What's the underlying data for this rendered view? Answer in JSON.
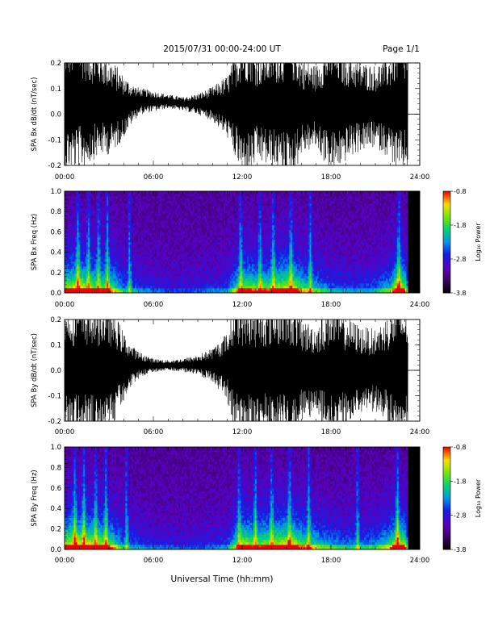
{
  "header": {
    "date_range": "2015/07/31  00:00-24:00 UT",
    "page": "Page 1/1"
  },
  "xlabel": "Universal Time (hh:mm)",
  "chart_data": [
    {
      "type": "line",
      "ylabel": "SPA Bx dB/dt (nT/sec)",
      "ylim": [
        -0.2,
        0.2
      ],
      "yticks": [
        "0.2",
        "0.1",
        "0.0",
        "-0.1",
        "-0.2"
      ],
      "xticks": [
        "00:00",
        "06:00",
        "12:00",
        "18:00",
        "24:00"
      ],
      "xlim_hours": [
        0,
        24
      ],
      "data_end_hour": 23.2,
      "envelope": {
        "hours": [
          0,
          0.5,
          1.0,
          1.5,
          2.0,
          2.5,
          3.0,
          3.5,
          4.0,
          4.5,
          5.0,
          6.0,
          7.0,
          8.0,
          9.0,
          10.0,
          11.0,
          11.5,
          12.0,
          12.5,
          13.0,
          14.0,
          15.0,
          15.5,
          16.0,
          17.0,
          18.0,
          19.0,
          20.0,
          21.0,
          22.0,
          22.5,
          23.2
        ],
        "amplitude": [
          0.2,
          0.2,
          0.2,
          0.18,
          0.16,
          0.15,
          0.14,
          0.12,
          0.09,
          0.06,
          0.04,
          0.03,
          0.02,
          0.02,
          0.03,
          0.05,
          0.09,
          0.15,
          0.2,
          0.2,
          0.16,
          0.18,
          0.2,
          0.2,
          0.14,
          0.12,
          0.2,
          0.16,
          0.13,
          0.12,
          0.15,
          0.2,
          0.18
        ],
        "offset": [
          0.05,
          0.05,
          0.05,
          0.04,
          0.04,
          0.04,
          0.03,
          0.03,
          0.03,
          0.04,
          0.05,
          0.05,
          0.05,
          0.04,
          0.04,
          0.04,
          0.03,
          0.03,
          0.03,
          0.03,
          0.03,
          0.03,
          0.03,
          0.03,
          0.03,
          0.03,
          0.03,
          0.03,
          0.03,
          0.03,
          0.03,
          0.03,
          0.03
        ]
      }
    },
    {
      "type": "heatmap",
      "ylabel": "SPA Bx Freq (Hz)",
      "ylim": [
        0,
        1.0
      ],
      "yticks": [
        "1.0",
        "0.8",
        "0.6",
        "0.4",
        "0.2",
        "0.0"
      ],
      "xticks": [
        "00:00",
        "06:00",
        "12:00",
        "18:00",
        "24:00"
      ],
      "xlim_hours": [
        0,
        24
      ],
      "data_end_hour": 23.2,
      "colorbar": {
        "label": "Log₁₀ Power",
        "ticks": [
          "-0.8",
          "-1.8",
          "-2.8",
          "-3.8"
        ],
        "range": [
          -3.8,
          -0.8
        ]
      },
      "activity": {
        "hours": [
          0,
          0.5,
          1.0,
          1.5,
          2.0,
          2.5,
          3.0,
          3.5,
          4.0,
          5.0,
          6.0,
          7.0,
          8.0,
          9.0,
          10.0,
          11.0,
          12.0,
          13.0,
          14.0,
          15.0,
          15.5,
          16.0,
          17.0,
          18.0,
          19.0,
          20.0,
          21.0,
          22.0,
          22.5,
          23.0,
          23.2
        ],
        "level": [
          0.8,
          0.9,
          1.0,
          0.85,
          0.8,
          0.75,
          0.8,
          0.6,
          0.4,
          0.3,
          0.25,
          0.2,
          0.2,
          0.22,
          0.25,
          0.3,
          0.85,
          0.75,
          0.8,
          0.95,
          0.9,
          0.7,
          0.5,
          0.35,
          0.3,
          0.3,
          0.35,
          0.55,
          1.0,
          0.8,
          0.3
        ]
      },
      "bright_lines_hours": [
        0.9,
        1.6,
        2.3,
        2.9,
        4.4,
        11.9,
        13.2,
        14.1,
        15.3,
        16.6,
        22.6
      ]
    },
    {
      "type": "line",
      "ylabel": "SPA By dB/dt (nT/sec)",
      "ylim": [
        -0.2,
        0.2
      ],
      "yticks": [
        "0.2",
        "0.1",
        "0.0",
        "-0.1",
        "-0.2"
      ],
      "xticks": [
        "00:00",
        "06:00",
        "12:00",
        "18:00",
        "24:00"
      ],
      "xlim_hours": [
        0,
        24
      ],
      "data_end_hour": 23.2,
      "envelope": {
        "hours": [
          0,
          0.5,
          1.0,
          1.5,
          2.0,
          2.5,
          3.0,
          3.5,
          4.0,
          4.5,
          5.0,
          6.0,
          7.0,
          8.0,
          9.0,
          10.0,
          11.0,
          11.5,
          12.0,
          12.5,
          13.0,
          14.0,
          15.0,
          15.5,
          16.0,
          17.0,
          18.0,
          19.0,
          20.0,
          21.0,
          22.0,
          22.5,
          23.2
        ],
        "amplitude": [
          0.2,
          0.2,
          0.2,
          0.2,
          0.2,
          0.2,
          0.18,
          0.15,
          0.1,
          0.06,
          0.04,
          0.02,
          0.015,
          0.02,
          0.03,
          0.05,
          0.1,
          0.2,
          0.2,
          0.2,
          0.18,
          0.2,
          0.2,
          0.2,
          0.15,
          0.13,
          0.2,
          0.16,
          0.13,
          0.12,
          0.17,
          0.2,
          0.18
        ],
        "offset": [
          0.0,
          0.0,
          0.0,
          0.0,
          0.0,
          0.0,
          0.01,
          0.01,
          0.015,
          0.02,
          0.02,
          0.02,
          0.02,
          0.02,
          0.02,
          0.02,
          0.015,
          0.01,
          0.0,
          0.0,
          0.0,
          0.0,
          0.0,
          0.0,
          0.0,
          0.0,
          0.0,
          0.0,
          0.0,
          0.0,
          0.0,
          0.0,
          0.0
        ]
      }
    },
    {
      "type": "heatmap",
      "ylabel": "SPA By Freq (Hz)",
      "ylim": [
        0,
        1.0
      ],
      "yticks": [
        "1.0",
        "0.8",
        "0.6",
        "0.4",
        "0.2",
        "0.0"
      ],
      "xticks": [
        "00:00",
        "06:00",
        "12:00",
        "18:00",
        "24:00"
      ],
      "xlim_hours": [
        0,
        24
      ],
      "data_end_hour": 23.2,
      "colorbar": {
        "label": "Log₁₀ Power",
        "ticks": [
          "-0.8",
          "-1.8",
          "-2.8",
          "-3.8"
        ],
        "range": [
          -3.8,
          -0.8
        ]
      },
      "activity": {
        "hours": [
          0,
          0.5,
          1.0,
          1.5,
          2.0,
          2.5,
          3.0,
          3.5,
          4.0,
          5.0,
          6.0,
          7.0,
          8.0,
          9.0,
          10.0,
          11.0,
          12.0,
          13.0,
          14.0,
          15.0,
          15.5,
          16.0,
          17.0,
          18.0,
          19.0,
          20.0,
          21.0,
          22.0,
          22.5,
          23.0,
          23.2
        ],
        "level": [
          0.9,
          1.0,
          1.0,
          0.95,
          0.9,
          0.85,
          0.8,
          0.6,
          0.4,
          0.3,
          0.25,
          0.22,
          0.2,
          0.22,
          0.25,
          0.3,
          0.9,
          0.8,
          0.85,
          0.95,
          0.95,
          0.75,
          0.6,
          0.45,
          0.4,
          0.4,
          0.45,
          0.65,
          1.0,
          0.85,
          0.3
        ]
      },
      "bright_lines_hours": [
        0.7,
        1.3,
        2.1,
        2.8,
        4.2,
        11.8,
        12.9,
        14.0,
        15.2,
        16.5,
        19.8,
        22.5
      ]
    }
  ]
}
